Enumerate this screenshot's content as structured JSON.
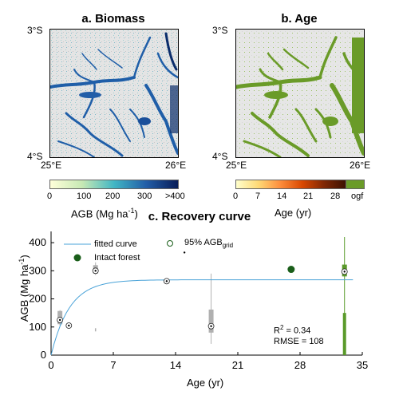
{
  "panels": {
    "biomass": {
      "title": "a. Biomass",
      "lat_top": "3°S",
      "lat_bottom": "4°S",
      "lon_left": "25°E",
      "lon_right": "26°E",
      "colorbar_ticks": [
        "0",
        "100",
        "200",
        "300",
        ">400"
      ],
      "colorbar_label_pre": "AGB (Mg ha",
      "colorbar_label_sup": "-1",
      "colorbar_label_post": ")",
      "colors": [
        "#ffffd9",
        "#c7e9b4",
        "#41b6c4",
        "#225ea8",
        "#081d58"
      ]
    },
    "age": {
      "title": "b. Age",
      "lat_top": "3°S",
      "lat_bottom": "4°S",
      "lon_left": "25°E",
      "lon_right": "26°E",
      "colorbar_ticks": [
        "0",
        "7",
        "14",
        "21",
        "28",
        "ogf"
      ],
      "colorbar_label": "Age (yr)",
      "colors": [
        "#ffffcc",
        "#fd8d3c",
        "#7f2704",
        "#6a9b28"
      ]
    }
  },
  "chart_data": {
    "type": "scatter",
    "title": "c. Recovery curve",
    "xlabel": "Age (yr)",
    "ylabel_pre": "AGB (Mg ha",
    "ylabel_sup": "-1",
    "ylabel_post": ")",
    "xlim": [
      0,
      35
    ],
    "ylim": [
      0,
      440
    ],
    "xticks": [
      "0",
      "7",
      "14",
      "21",
      "28",
      "35"
    ],
    "yticks": [
      "0",
      "100",
      "200",
      "300",
      "400"
    ],
    "legend": {
      "fitted": "fitted curve",
      "agb_pre": "95% AGB",
      "agb_sub": "grid",
      "intact": "Intact forest"
    },
    "stats": {
      "r2_pre": "R",
      "r2_sup": "2",
      "r2_post": " = 0.34",
      "rmse": "RMSE = 108"
    },
    "colors": {
      "curve": "#4aa3d8",
      "intact": "#1a5e1a",
      "box": "#b0b0b0",
      "ogf_box": "#5a9a2a"
    },
    "fitted_curve": {
      "asymptote": 268,
      "rate": 0.48
    },
    "points": [
      {
        "x": 1,
        "y": 125
      },
      {
        "x": 2,
        "y": 105
      },
      {
        "x": 5,
        "y": 300
      },
      {
        "x": 13,
        "y": 263
      },
      {
        "x": 18,
        "y": 103
      },
      {
        "x": 33,
        "y": 297
      }
    ],
    "boxes": [
      {
        "x": 1,
        "q1": 110,
        "q3": 157,
        "whisk_lo": 105,
        "whisk_hi": 160
      },
      {
        "x": 5,
        "q1": 290,
        "q3": 320,
        "whisk_lo": 285,
        "whisk_hi": 330
      },
      {
        "x": 18,
        "q1": 80,
        "q3": 162,
        "whisk_lo": 40,
        "whisk_hi": 290
      }
    ],
    "outliers": [
      {
        "x": 5,
        "y": 90
      }
    ],
    "ogf": {
      "x": 33,
      "q1": 280,
      "q3": 322,
      "whisk_lo": 0,
      "whisk_hi": 420,
      "lower_band": 150
    },
    "intact_forest": {
      "x": 27,
      "y": 305
    },
    "extra_point": {
      "x": 15,
      "y": 365
    }
  }
}
